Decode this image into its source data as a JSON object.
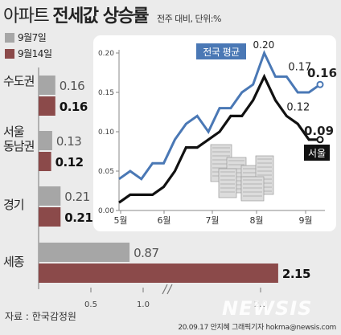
{
  "header": {
    "title_a": "아파트",
    "title_b": "전세값 상승률",
    "subtitle": "전주 대비, 단위:%"
  },
  "legend": {
    "prev_label": "9월7일",
    "curr_label": "9월14일"
  },
  "colors": {
    "prev": "#a6a6a6",
    "curr": "#8b4a4a",
    "national_line": "#4a78b5",
    "seoul_line": "#111111",
    "inset_bg": "#ffffff",
    "background": "#ebebeb"
  },
  "footer": {
    "source": "자료 : 한국감정원",
    "credit": "20.09.17 안지혜 그래픽기자  hokma@newsis.com",
    "watermark": "NEWSIS"
  },
  "chart_data": [
    {
      "type": "bar",
      "orientation": "horizontal",
      "categories": [
        "수도권",
        "서울 동남권",
        "경기",
        "세종"
      ],
      "series": [
        {
          "name": "9월7일",
          "values": [
            0.16,
            0.13,
            0.21,
            0.87
          ],
          "color": "#a6a6a6"
        },
        {
          "name": "9월14일",
          "values": [
            0.16,
            0.12,
            0.21,
            2.15
          ],
          "color": "#8b4a4a"
        }
      ],
      "xticks": [
        0.5,
        1.0,
        2.0
      ],
      "xtick_labels": [
        "0.5",
        "1.0",
        "2.0"
      ],
      "axis_break": [
        1.0,
        2.0
      ]
    },
    {
      "type": "line",
      "x_labels": [
        "5월",
        "6월",
        "7월",
        "8월",
        "9월"
      ],
      "ylim": [
        0,
        0.2
      ],
      "yticks": [
        0,
        0.05,
        0.1,
        0.15,
        0.2
      ],
      "ytick_labels": [
        "0.00",
        "0.05",
        "0.10",
        "0.15",
        "0.20"
      ],
      "series": [
        {
          "name": "전국 평균",
          "color": "#4a78b5",
          "values": [
            0.04,
            0.05,
            0.04,
            0.06,
            0.06,
            0.09,
            0.11,
            0.12,
            0.1,
            0.13,
            0.13,
            0.15,
            0.16,
            0.2,
            0.17,
            0.17,
            0.15,
            0.15,
            0.16
          ]
        },
        {
          "name": "서울",
          "color": "#111111",
          "values": [
            0.01,
            0.02,
            0.02,
            0.02,
            0.03,
            0.05,
            0.08,
            0.08,
            0.09,
            0.1,
            0.12,
            0.12,
            0.14,
            0.17,
            0.14,
            0.12,
            0.11,
            0.09,
            0.09
          ]
        }
      ],
      "annotations": [
        {
          "text": "0.20",
          "series": 0,
          "index": 13
        },
        {
          "text": "0.17",
          "series": 0,
          "index": 15
        },
        {
          "text": "0.16",
          "series": 0,
          "index": 18
        },
        {
          "text": "0.12",
          "series": 1,
          "index": 15
        },
        {
          "text": "0.09",
          "series": 1,
          "index": 18
        }
      ]
    }
  ]
}
